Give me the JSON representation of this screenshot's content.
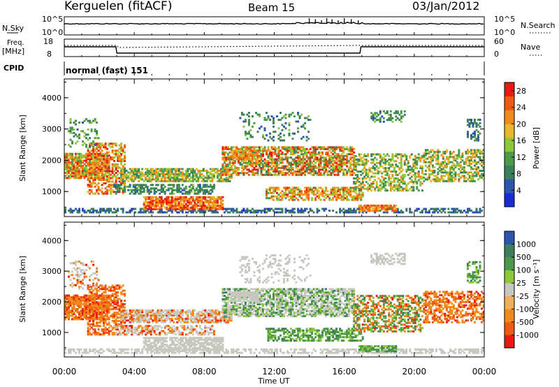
{
  "header": {
    "station": "Kerguelen (fitACF)",
    "beam": "Beam 15",
    "date": "03/Jan/2012"
  },
  "panels": {
    "nsky_label": "N.Sky",
    "nsky_ticks": [
      "10^5",
      "10^0"
    ],
    "nsearch_label": "N.Search",
    "nsearch_ticks": [
      "10^5",
      "10^0"
    ],
    "freq_label": "Freq.",
    "freq_unit": "[MHz]",
    "freq_ticks": [
      "18",
      "8"
    ],
    "nave_label": "Nave",
    "nave_ticks": [
      "60",
      "0"
    ],
    "cpid_label": "CPID",
    "cpid_value": "normal (fast) 151"
  },
  "colors": {
    "power": [
      "#1a2bd6",
      "#2b55b0",
      "#3b7f5a",
      "#4c9a49",
      "#8cc83a",
      "#e8b82a",
      "#f08a1a",
      "#ef5a12",
      "#e81a12"
    ],
    "velocity": [
      "#e81a12",
      "#ef5a12",
      "#f08a1a",
      "#f0b05a",
      "#c8c8c0",
      "#8cc83a",
      "#4c9a49",
      "#3b7f5a",
      "#2b55b0"
    ]
  },
  "chart_data": [
    {
      "type": "heatmap",
      "name": "power",
      "xlabel": "Time UT",
      "ylabel": "Slant Range [km]",
      "xlim": [
        0,
        24
      ],
      "ylim": [
        200,
        4600
      ],
      "x_ticks": [
        "00:00",
        "04:00",
        "08:00",
        "12:00",
        "16:00",
        "20:00",
        "00:00"
      ],
      "y_ticks": [
        1000,
        2000,
        3000,
        4000
      ],
      "colorbar_label": "Power [dB]",
      "colorbar_ticks": [
        4,
        8,
        12,
        16,
        20,
        24,
        28
      ],
      "colorbar_range": [
        0,
        30
      ]
    },
    {
      "type": "heatmap",
      "name": "velocity",
      "xlabel": "Time UT",
      "ylabel": "Slant Range [km]",
      "xlim": [
        0,
        24
      ],
      "ylim": [
        200,
        4600
      ],
      "x_ticks": [
        "00:00",
        "04:00",
        "08:00",
        "12:00",
        "16:00",
        "20:00",
        "00:00"
      ],
      "y_ticks": [
        1000,
        2000,
        3000,
        4000
      ],
      "colorbar_label": "Velocity [m s⁻¹]",
      "colorbar_ticks": [
        "-1000",
        "-500",
        "-100",
        "-25",
        "25",
        "100",
        "500",
        "1000"
      ]
    }
  ]
}
